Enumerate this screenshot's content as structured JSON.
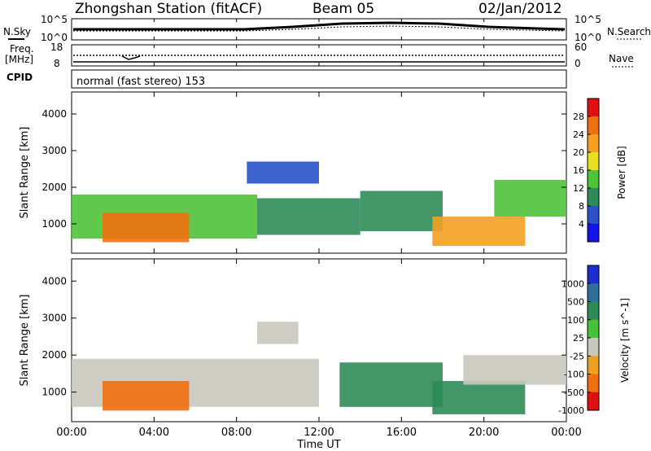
{
  "header": {
    "station": "Zhongshan Station (fitACF)",
    "beam": "Beam 05",
    "date": "02/Jan/2012"
  },
  "noise_panel": {
    "left_label": "N.Sky",
    "right_label": "N.Search",
    "left_ticks": [
      "10^5",
      "10^0"
    ],
    "right_ticks": [
      "10^5",
      "10^0"
    ]
  },
  "freq_panel": {
    "left_label_1": "Freq.",
    "left_label_2": "[MHz]",
    "left_ticks": [
      "18",
      "8"
    ],
    "right_label": "Nave",
    "right_ticks": [
      "60",
      "0"
    ]
  },
  "cpid": {
    "label": "CPID",
    "text": "normal (fast stereo) 153"
  },
  "chart_data": [
    {
      "type": "heatmap",
      "name": "power",
      "ylabel": "Slant Range [km]",
      "yticks": [
        1000,
        2000,
        3000,
        4000
      ],
      "ylim": [
        200,
        4600
      ],
      "xlim": [
        0,
        24
      ],
      "colorbar": {
        "label": "Power [dB]",
        "ticks": [
          "4",
          "8",
          "12",
          "16",
          "20",
          "24",
          "28"
        ],
        "colors": [
          "#1414e6",
          "#2a52c8",
          "#2e8b57",
          "#4fc23a",
          "#e8e020",
          "#f5a020",
          "#f07010",
          "#e01010"
        ]
      },
      "regions": [
        {
          "t0": 0.0,
          "t1": 9.0,
          "r0": 600,
          "r1": 1800,
          "value": 14
        },
        {
          "t0": 1.5,
          "t1": 5.7,
          "r0": 500,
          "r1": 1300,
          "value": 26
        },
        {
          "t0": 9.0,
          "t1": 14.0,
          "r0": 700,
          "r1": 1700,
          "value": 10
        },
        {
          "t0": 8.5,
          "t1": 12.0,
          "r0": 2100,
          "r1": 2700,
          "value": 6
        },
        {
          "t0": 14.0,
          "t1": 18.0,
          "r0": 800,
          "r1": 1900,
          "value": 11
        },
        {
          "t0": 17.5,
          "t1": 22.0,
          "r0": 400,
          "r1": 1200,
          "value": 22
        },
        {
          "t0": 20.5,
          "t1": 24.0,
          "r0": 1200,
          "r1": 2200,
          "value": 13
        }
      ]
    },
    {
      "type": "heatmap",
      "name": "velocity",
      "ylabel": "Slant Range [km]",
      "yticks": [
        1000,
        2000,
        3000,
        4000
      ],
      "ylim": [
        200,
        4600
      ],
      "xlim": [
        0,
        24
      ],
      "colorbar": {
        "label": "Velocity [m s^-1]",
        "ticks": [
          "1000",
          "500",
          "100",
          "25",
          "-25",
          "-100",
          "-500",
          "-1000"
        ],
        "colors": [
          "#1a2ed0",
          "#2e6e9e",
          "#2e8b57",
          "#44c23a",
          "#c8c8bc",
          "#f0a020",
          "#f07010",
          "#e01010"
        ]
      },
      "regions": [
        {
          "t0": 0.0,
          "t1": 12.0,
          "r0": 600,
          "r1": 1900,
          "value": 0
        },
        {
          "t0": 1.5,
          "t1": 5.7,
          "r0": 500,
          "r1": 1300,
          "value": -400
        },
        {
          "t0": 9.0,
          "t1": 11.0,
          "r0": 2300,
          "r1": 2900,
          "value": 0
        },
        {
          "t0": 13.0,
          "t1": 18.0,
          "r0": 600,
          "r1": 1800,
          "value": 120
        },
        {
          "t0": 17.5,
          "t1": 22.0,
          "r0": 400,
          "r1": 1300,
          "value": 300
        },
        {
          "t0": 19.0,
          "t1": 24.0,
          "r0": 1200,
          "r1": 2000,
          "value": 0
        }
      ]
    }
  ],
  "x_axis": {
    "label": "Time UT",
    "ticks": [
      "00:00",
      "04:00",
      "08:00",
      "12:00",
      "16:00",
      "20:00",
      "00:00"
    ]
  }
}
